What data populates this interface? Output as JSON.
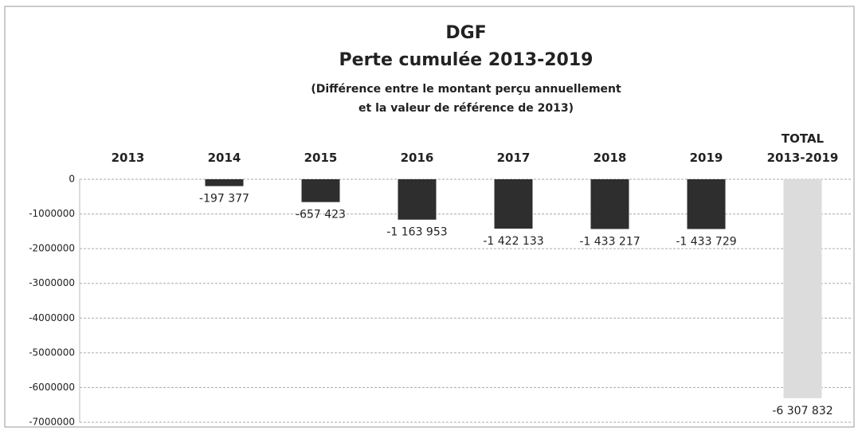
{
  "chart_data": {
    "type": "bar",
    "title": "DGF",
    "subtitle": "Perte cumulée 2013-2019",
    "annotations": [
      "(Différence entre le montant perçu annuellement",
      "et la valeur de référence de 2013)"
    ],
    "categories": [
      "2013",
      "2014",
      "2015",
      "2016",
      "2017",
      "2018",
      "2019",
      "TOTAL 2013-2019"
    ],
    "values": [
      0,
      -197377,
      -657423,
      -1163953,
      -1422133,
      -1433217,
      -1433729,
      -6307832
    ],
    "value_labels": [
      null,
      "-197 377",
      "-657 423",
      "-1 163 953",
      "-1 422 133",
      "-1 433 217",
      "-1 433 729",
      "-6 307 832"
    ],
    "colors": [
      "#2e2e2e",
      "#2e2e2e",
      "#2e2e2e",
      "#2e2e2e",
      "#2e2e2e",
      "#2e2e2e",
      "#2e2e2e",
      "#dcdcdc"
    ],
    "ylim": [
      -7000000,
      0
    ],
    "yticks": [
      0,
      -1000000,
      -2000000,
      -3000000,
      -4000000,
      -5000000,
      -6000000,
      -7000000
    ],
    "grid": true
  }
}
